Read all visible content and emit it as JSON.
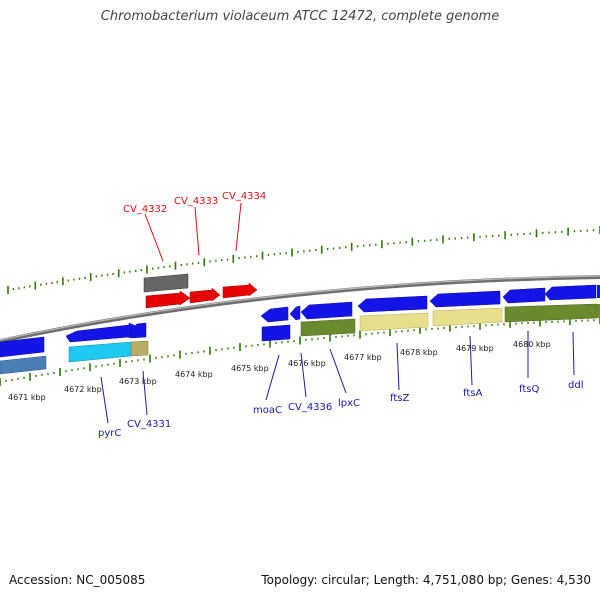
{
  "title": "Chromobacterium violaceum ATCC 12472, complete genome",
  "footer": {
    "accession": "Accession: NC_005085",
    "summary": "Topology: circular; Length: 4,751,080 bp; Genes: 4,530"
  },
  "colors": {
    "backbone": "#8a8a8a",
    "forward_gene": "#1414e6",
    "reverse_gene": "#1414e6",
    "rna_red": "#e60000",
    "pseudo_grey": "#666666",
    "cds_khaki": "#e8df8c",
    "cds_olive": "#6b8a2e",
    "cds_cyan": "#1ec8f0",
    "cds_steel": "#4a7fb5",
    "tick_green": "#2a7a00",
    "label_blue": "#1a1aaa",
    "label_red": "#dd1111"
  },
  "kbp_labels": [
    "4671 kbp",
    "4672 kbp",
    "4673 kbp",
    "4674 kbp",
    "4675 kbp",
    "4676 kbp",
    "4677 kbp",
    "4678 kbp",
    "4679 kbp",
    "4680 kbp"
  ],
  "genes_red": [
    "CV_4332",
    "CV_4333",
    "CV_4334"
  ],
  "genes_blue": [
    "pyrC",
    "CV_4331",
    "moaC",
    "CV_4336",
    "lpxC",
    "ftsZ",
    "ftsA",
    "ftsQ",
    "ddl"
  ]
}
